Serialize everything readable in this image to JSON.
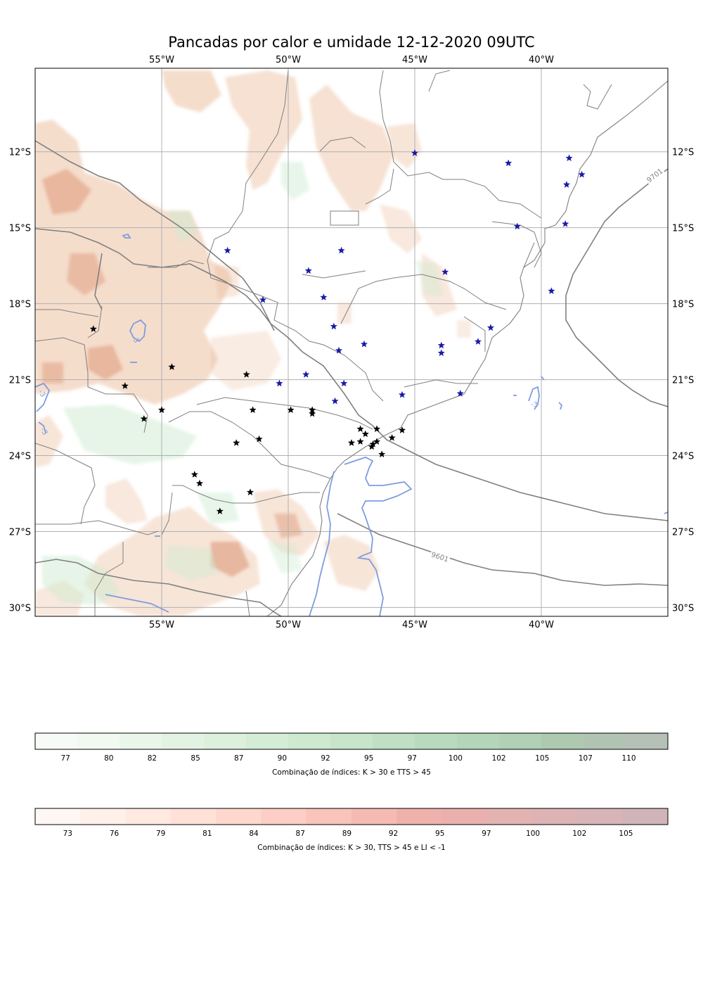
{
  "title": "Pancadas por calor e umidade 12-12-2020 09UTC",
  "map": {
    "lon_range": [
      -60,
      -35
    ],
    "lat_range": [
      -30.35,
      -8.7
    ],
    "lon_ticks": [
      {
        "value": -55,
        "label": "55°W"
      },
      {
        "value": -50,
        "label": "50°W"
      },
      {
        "value": -45,
        "label": "45°W"
      },
      {
        "value": -40,
        "label": "40°W"
      }
    ],
    "lat_ticks": [
      {
        "value": -12,
        "label": "12°S"
      },
      {
        "value": -15,
        "label": "15°S"
      },
      {
        "value": -18,
        "label": "18°S"
      },
      {
        "value": -21,
        "label": "21°S"
      },
      {
        "value": -24,
        "label": "24°S"
      },
      {
        "value": -27,
        "label": "27°S"
      },
      {
        "value": -30,
        "label": "30°S"
      }
    ],
    "grid": true,
    "pressure_contour_labels": [
      "9701",
      "9601"
    ],
    "li_contour_labels": [
      "-3",
      "-3",
      "-3",
      "-3"
    ],
    "colors": {
      "brown_fill": "#e8b48f",
      "green_fill": "#cdebd0",
      "pressure_line": "#808080",
      "li_line": "#7e9ce0",
      "boundaries": "#808080",
      "star_blue": "#1a1aa6",
      "star_black": "#000000"
    },
    "stations_blue": [
      [
        -45.0,
        -12.05
      ],
      [
        -41.3,
        -12.45
      ],
      [
        -38.9,
        -12.25
      ],
      [
        -38.4,
        -12.9
      ],
      [
        -39.0,
        -13.3
      ],
      [
        -40.95,
        -14.95
      ],
      [
        -39.05,
        -14.85
      ],
      [
        -52.4,
        -15.9
      ],
      [
        -47.9,
        -15.9
      ],
      [
        -49.2,
        -16.7
      ],
      [
        -43.8,
        -16.75
      ],
      [
        -51.0,
        -17.85
      ],
      [
        -48.6,
        -17.75
      ],
      [
        -39.6,
        -17.5
      ],
      [
        -48.2,
        -18.9
      ],
      [
        -42.0,
        -18.95
      ],
      [
        -42.5,
        -19.5
      ],
      [
        -47.0,
        -19.6
      ],
      [
        -43.95,
        -19.65
      ],
      [
        -43.95,
        -19.95
      ],
      [
        -48.0,
        -19.85
      ],
      [
        -49.3,
        -20.8
      ],
      [
        -50.35,
        -21.15
      ],
      [
        -47.8,
        -21.15
      ],
      [
        -45.5,
        -21.6
      ],
      [
        -43.2,
        -21.55
      ],
      [
        -48.15,
        -21.85
      ]
    ],
    "stations_black": [
      [
        -57.7,
        -19.0
      ],
      [
        -54.6,
        -20.5
      ],
      [
        -56.45,
        -21.25
      ],
      [
        -51.65,
        -20.8
      ],
      [
        -55.0,
        -22.2
      ],
      [
        -55.7,
        -22.55
      ],
      [
        -51.4,
        -22.2
      ],
      [
        -49.9,
        -22.2
      ],
      [
        -49.05,
        -22.2
      ],
      [
        -49.05,
        -22.35
      ],
      [
        -47.15,
        -22.95
      ],
      [
        -46.5,
        -22.95
      ],
      [
        -45.5,
        -23.0
      ],
      [
        -46.95,
        -23.15
      ],
      [
        -45.9,
        -23.3
      ],
      [
        -52.05,
        -23.5
      ],
      [
        -51.15,
        -23.35
      ],
      [
        -47.5,
        -23.5
      ],
      [
        -47.15,
        -23.45
      ],
      [
        -46.5,
        -23.45
      ],
      [
        -46.65,
        -23.55
      ],
      [
        -46.7,
        -23.65
      ],
      [
        -46.3,
        -23.95
      ],
      [
        -53.7,
        -24.75
      ],
      [
        -53.5,
        -25.1
      ],
      [
        -51.5,
        -25.45
      ],
      [
        -52.7,
        -26.2
      ]
    ]
  },
  "colorbars": [
    {
      "id": "green",
      "ticks": [
        "77",
        "80",
        "82",
        "85",
        "87",
        "90",
        "92",
        "95",
        "97",
        "100",
        "102",
        "105",
        "107",
        "110"
      ],
      "colors": [
        "#f7fbf7",
        "#f1f9f1",
        "#eaf6ea",
        "#e3f3e3",
        "#dcf0dc",
        "#d4edd5",
        "#cde9cf",
        "#c6e5c9",
        "#bfe0c3",
        "#b9dbbd",
        "#b4d6b8",
        "#b0d1b4",
        "#adcaaf",
        "#b1c4b4",
        "#b5c0b7"
      ],
      "label": "Combinação de índices: K > 30 e TTS > 45"
    },
    {
      "id": "red",
      "ticks": [
        "73",
        "76",
        "79",
        "81",
        "84",
        "87",
        "89",
        "92",
        "95",
        "97",
        "100",
        "102",
        "105"
      ],
      "colors": [
        "#fff7f3",
        "#fff0ea",
        "#ffe9e1",
        "#ffe1d8",
        "#fed8cf",
        "#fccec5",
        "#f9c4bb",
        "#f5bab2",
        "#efb1ab",
        "#e9b0ae",
        "#e3b3b2",
        "#ddb3b5",
        "#d6b4b8",
        "#d1b4b9"
      ],
      "label": "Combinação de índices: K > 30, TTS > 45 e LI < -1"
    }
  ]
}
